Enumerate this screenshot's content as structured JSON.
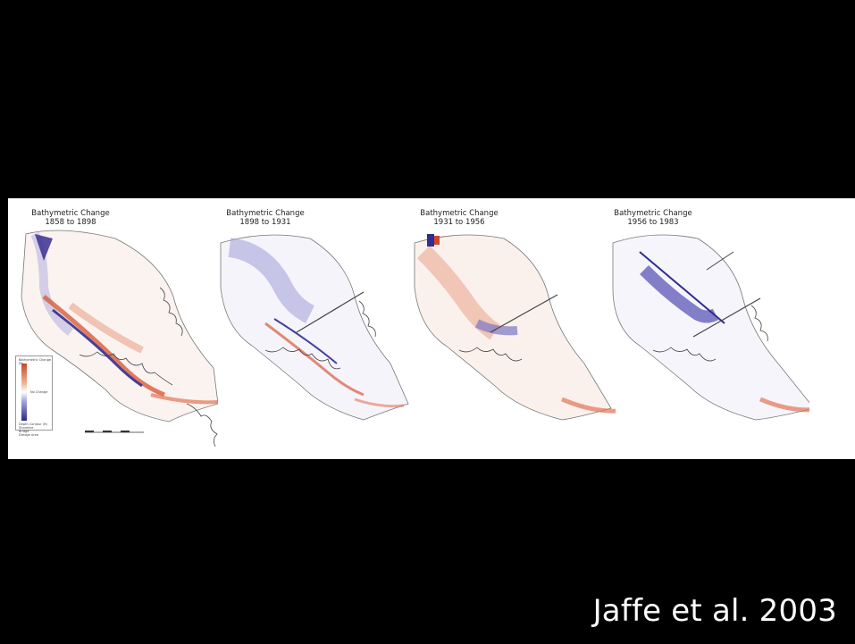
{
  "figure": {
    "panels": [
      {
        "title": "Bathymetric Change",
        "period": "1858 to 1898"
      },
      {
        "title": "Bathymetric Change",
        "period": "1898 to 1931"
      },
      {
        "title": "Bathymetric Change",
        "period": "1931 to 1956"
      },
      {
        "title": "Bathymetric Change",
        "period": "1956 to 1983"
      }
    ],
    "legend": {
      "title": "Bathymetric Change (ft)",
      "no_change": "No Change",
      "items": [
        "Depth Contour (ft)",
        "Shoreline",
        "Bridge",
        "Dredge Area"
      ]
    },
    "colors": {
      "deposition": "#d2462a",
      "erosion": "#2f2d92",
      "no_change": "#ffffff",
      "shoreline": "#555555"
    }
  },
  "credit": "Jaffe et al. 2003"
}
